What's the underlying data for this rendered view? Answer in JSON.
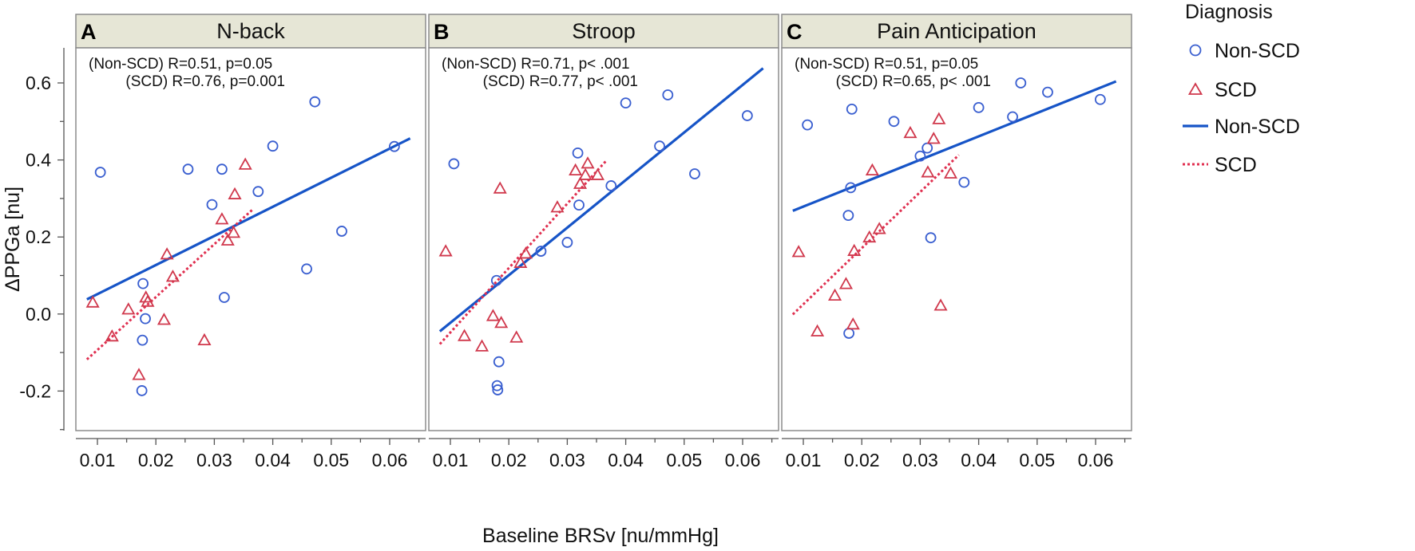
{
  "chart_data": {
    "type": "scatter",
    "ylabel": "ΔPPGa [nu]",
    "xlabel": "Baseline BRSv [nu/mmHg]",
    "xlim": [
      0.005,
      0.0645
    ],
    "ylim": [
      -0.3,
      0.7
    ],
    "x_ticks": [
      0.01,
      0.02,
      0.03,
      0.04,
      0.05,
      0.06
    ],
    "x_tick_labels": [
      "0.01",
      "0.02",
      "0.03",
      "0.04",
      "0.05",
      "0.06"
    ],
    "y_ticks": [
      -0.2,
      0.0,
      0.2,
      0.4,
      0.6
    ],
    "y_tick_labels": [
      "-0.2",
      "0.0",
      "0.2",
      "0.4",
      "0.6"
    ],
    "y_minor_ticks": [
      -0.3,
      -0.1,
      0.1,
      0.3,
      0.5,
      0.7
    ],
    "legend": {
      "title": "Diagnosis",
      "items": [
        {
          "label": "Non-SCD",
          "marker": "circle"
        },
        {
          "label": "SCD",
          "marker": "triangle"
        },
        {
          "label": "Non-SCD",
          "marker": "solid-line"
        },
        {
          "label": "SCD",
          "marker": "dotted-line"
        }
      ]
    },
    "panels": [
      {
        "letter": "A",
        "title": "N-back",
        "annot_non": "(Non-SCD) R=0.51, p=0.05",
        "annot_scd": "(SCD) R=0.76, p=0.001",
        "non_scd": [
          [
            0.0105,
            0.368
          ],
          [
            0.0178,
            0.079
          ],
          [
            0.0182,
            -0.012
          ],
          [
            0.0177,
            -0.068
          ],
          [
            0.0176,
            -0.199
          ],
          [
            0.0255,
            0.376
          ],
          [
            0.0296,
            0.284
          ],
          [
            0.0313,
            0.376
          ],
          [
            0.0317,
            0.043
          ],
          [
            0.0375,
            0.318
          ],
          [
            0.04,
            0.436
          ],
          [
            0.0458,
            0.117
          ],
          [
            0.0472,
            0.551
          ],
          [
            0.0518,
            0.215
          ],
          [
            0.0608,
            0.435
          ]
        ],
        "scd": [
          [
            0.0092,
            0.029
          ],
          [
            0.0125,
            -0.059
          ],
          [
            0.0153,
            0.011
          ],
          [
            0.0171,
            -0.159
          ],
          [
            0.0183,
            0.042
          ],
          [
            0.0186,
            0.031
          ],
          [
            0.0214,
            -0.016
          ],
          [
            0.0219,
            0.154
          ],
          [
            0.0229,
            0.096
          ],
          [
            0.0283,
            -0.069
          ],
          [
            0.0313,
            0.245
          ],
          [
            0.0323,
            0.19
          ],
          [
            0.0333,
            0.21
          ],
          [
            0.0335,
            0.31
          ],
          [
            0.0353,
            0.387
          ]
        ],
        "fit_non": [
          [
            0.0082,
            0.038
          ],
          [
            0.0635,
            0.456
          ]
        ],
        "fit_scd": [
          [
            0.0082,
            -0.118
          ],
          [
            0.0366,
            0.272
          ]
        ]
      },
      {
        "letter": "B",
        "title": "Stroop",
        "annot_non": "(Non-SCD) R=0.71, p< .001",
        "annot_scd": "(SCD) R=0.77, p< .001",
        "non_scd": [
          [
            0.0106,
            0.39
          ],
          [
            0.0179,
            0.087
          ],
          [
            0.0183,
            -0.124
          ],
          [
            0.018,
            -0.186
          ],
          [
            0.0181,
            -0.197
          ],
          [
            0.0255,
            0.163
          ],
          [
            0.03,
            0.186
          ],
          [
            0.0318,
            0.418
          ],
          [
            0.032,
            0.283
          ],
          [
            0.0375,
            0.333
          ],
          [
            0.04,
            0.548
          ],
          [
            0.0458,
            0.436
          ],
          [
            0.0472,
            0.569
          ],
          [
            0.0518,
            0.364
          ],
          [
            0.0608,
            0.515
          ]
        ],
        "scd": [
          [
            0.0092,
            0.162
          ],
          [
            0.0124,
            -0.058
          ],
          [
            0.0154,
            -0.085
          ],
          [
            0.0173,
            -0.006
          ],
          [
            0.0185,
            0.325
          ],
          [
            0.0187,
            -0.024
          ],
          [
            0.0213,
            -0.062
          ],
          [
            0.022,
            0.132
          ],
          [
            0.0229,
            0.156
          ],
          [
            0.0283,
            0.276
          ],
          [
            0.0314,
            0.372
          ],
          [
            0.0322,
            0.337
          ],
          [
            0.0331,
            0.36
          ],
          [
            0.0335,
            0.39
          ],
          [
            0.0352,
            0.36
          ]
        ],
        "fit_non": [
          [
            0.0082,
            -0.045
          ],
          [
            0.0635,
            0.638
          ]
        ],
        "fit_scd": [
          [
            0.0082,
            -0.078
          ],
          [
            0.0366,
            0.397
          ]
        ]
      },
      {
        "letter": "C",
        "title": "Pain Anticipation",
        "annot_non": "(Non-SCD) R=0.51, p=0.05",
        "annot_scd": "(SCD) R=0.65, p< .001",
        "non_scd": [
          [
            0.0107,
            0.491
          ],
          [
            0.0178,
            -0.05
          ],
          [
            0.0177,
            0.256
          ],
          [
            0.0181,
            0.328
          ],
          [
            0.0183,
            0.532
          ],
          [
            0.0255,
            0.5
          ],
          [
            0.03,
            0.41
          ],
          [
            0.0312,
            0.431
          ],
          [
            0.0318,
            0.198
          ],
          [
            0.0375,
            0.342
          ],
          [
            0.04,
            0.536
          ],
          [
            0.0458,
            0.512
          ],
          [
            0.0472,
            0.6
          ],
          [
            0.0518,
            0.576
          ],
          [
            0.0608,
            0.557
          ]
        ],
        "scd": [
          [
            0.0092,
            0.16
          ],
          [
            0.0124,
            -0.046
          ],
          [
            0.0154,
            0.047
          ],
          [
            0.0173,
            0.077
          ],
          [
            0.0185,
            -0.028
          ],
          [
            0.0187,
            0.163
          ],
          [
            0.0213,
            0.198
          ],
          [
            0.0218,
            0.372
          ],
          [
            0.023,
            0.22
          ],
          [
            0.0283,
            0.469
          ],
          [
            0.0313,
            0.367
          ],
          [
            0.0323,
            0.454
          ],
          [
            0.0332,
            0.505
          ],
          [
            0.0335,
            0.021
          ],
          [
            0.0352,
            0.364
          ]
        ],
        "fit_non": [
          [
            0.0082,
            0.268
          ],
          [
            0.0635,
            0.604
          ]
        ],
        "fit_scd": [
          [
            0.0082,
            -0.001
          ],
          [
            0.0366,
            0.413
          ]
        ]
      }
    ]
  }
}
